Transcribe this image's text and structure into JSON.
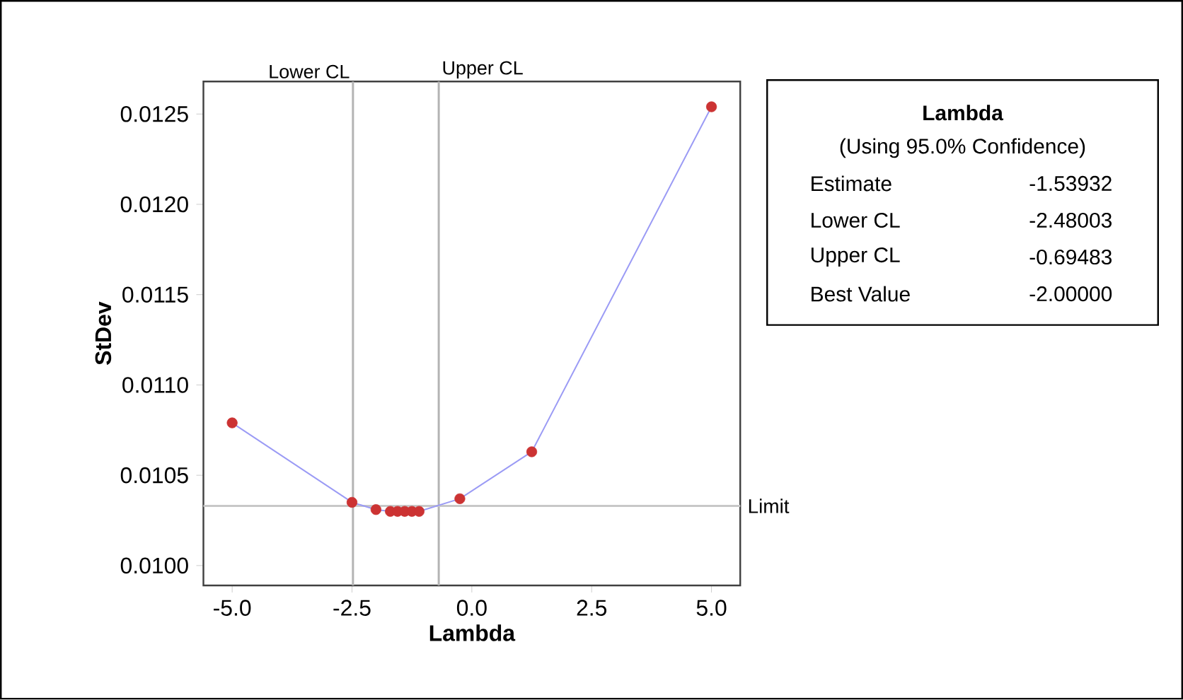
{
  "chart_data": {
    "type": "line",
    "xlabel": "Lambda",
    "ylabel": "StDev",
    "x": [
      -5,
      -2.5,
      -2,
      -1.7,
      -1.55,
      -1.4,
      -1.25,
      -1.1,
      -0.25,
      1.25,
      5
    ],
    "series": [
      {
        "color": "#9b9bf5",
        "colors": [
          "#cc3333",
          "#cc3333",
          "#cc3333",
          "#cc3333",
          "#cc3333",
          "#cc3333",
          "#cc3333",
          "#cc3333",
          "#cc3333",
          "#cc3333",
          "#cc3333"
        ],
        "values": [
          0.01079,
          0.01035,
          0.01031,
          0.0103,
          0.0103,
          0.0103,
          0.0103,
          0.0103,
          0.01037,
          0.01063,
          0.01254
        ]
      }
    ],
    "marker": "circle",
    "line_style": "solid",
    "grid": false,
    "xlim": [
      -5.6,
      5.6
    ],
    "ylim": [
      0.00989,
      0.01268
    ],
    "xticks": [
      {
        "value": -5,
        "label": "-5.0"
      },
      {
        "value": -2.5,
        "label": "-2.5"
      },
      {
        "value": 0,
        "label": "0.0"
      },
      {
        "value": 2.5,
        "label": "2.5"
      },
      {
        "value": 5,
        "label": "5.0"
      }
    ],
    "yticks": [
      {
        "value": 0.01,
        "label": "0.0100"
      },
      {
        "value": 0.0105,
        "label": "0.0105"
      },
      {
        "value": 0.011,
        "label": "0.0110"
      },
      {
        "value": 0.0115,
        "label": "0.0115"
      },
      {
        "value": 0.012,
        "label": "0.0120"
      },
      {
        "value": 0.0125,
        "label": "0.0125"
      }
    ],
    "ref_lines": [
      {
        "axis": "x",
        "value": -2.48,
        "label": "Lower CL",
        "color": "#b4b4b4"
      },
      {
        "axis": "x",
        "value": -0.69,
        "label": "Upper CL",
        "color": "#b4b4b4"
      },
      {
        "axis": "y",
        "value": 0.01033,
        "label": "Limit",
        "color": "#c8c8c8"
      }
    ],
    "annotations": [
      "Lambda",
      "(Using 95.0% Confidence)",
      "Estimate",
      "-1.53932",
      "Lower CL",
      "-2.48003",
      "Upper CL",
      "-0.69483",
      "Best Value",
      "-2.00000"
    ]
  }
}
